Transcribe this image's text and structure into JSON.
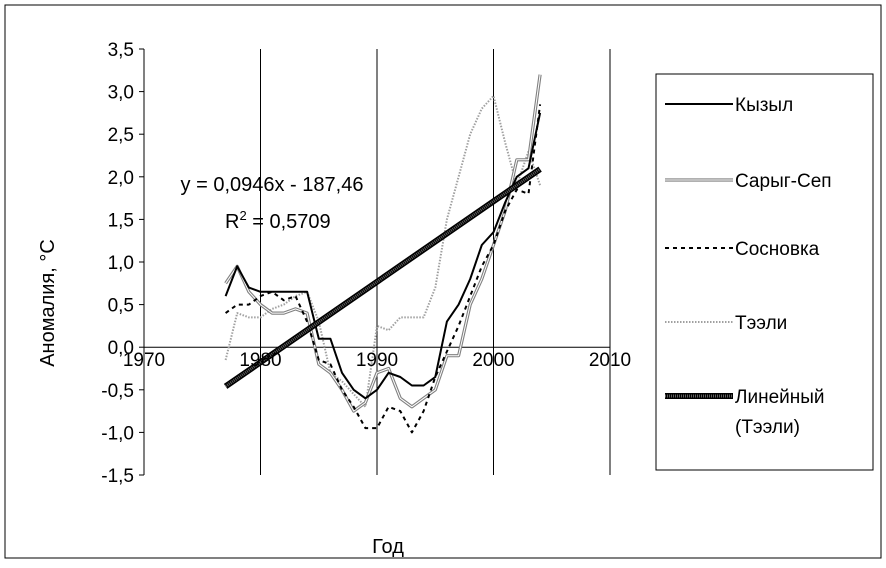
{
  "chart_data": {
    "type": "line",
    "title": "",
    "xlabel": "Год",
    "ylabel": "Аномалия, °C",
    "xlim": [
      1970,
      2010
    ],
    "ylim": [
      -1.5,
      3.5
    ],
    "x_ticks": [
      1970,
      1980,
      1990,
      2000,
      2010
    ],
    "x_tick_labels": [
      "1970",
      "1980",
      "1990",
      "2000",
      "2010"
    ],
    "y_ticks": [
      -1.5,
      -1.0,
      -0.5,
      0.0,
      0.5,
      1.0,
      1.5,
      2.0,
      2.5,
      3.0,
      3.5
    ],
    "y_tick_labels": [
      "-1,5",
      "-1,0",
      "-0,5",
      "0,0",
      "0,5",
      "1,0",
      "1,5",
      "2,0",
      "2,5",
      "3,0",
      "3,5"
    ],
    "grid": "vertical",
    "legend_position": "right",
    "equation": {
      "line1": "y = 0,0946x - 187,46",
      "r_prefix": "R",
      "r_sup": "2",
      "r_value": " = 0,5709"
    },
    "series": [
      {
        "name": "Кызыл",
        "style": "solid",
        "color": "#000000",
        "x": [
          1977,
          1978,
          1979,
          1980,
          1981,
          1982,
          1983,
          1984,
          1985,
          1986,
          1987,
          1988,
          1989,
          1990,
          1991,
          1992,
          1993,
          1994,
          1995,
          1996,
          1997,
          1998,
          1999,
          2000,
          2001,
          2002,
          2003,
          2004
        ],
        "y": [
          0.6,
          0.95,
          0.7,
          0.65,
          0.65,
          0.65,
          0.65,
          0.65,
          0.1,
          0.1,
          -0.3,
          -0.5,
          -0.6,
          -0.5,
          -0.3,
          -0.35,
          -0.45,
          -0.45,
          -0.35,
          0.3,
          0.5,
          0.8,
          1.2,
          1.35,
          1.7,
          2.0,
          2.1,
          2.75
        ]
      },
      {
        "name": "Сарыг-Сеп",
        "style": "double",
        "color": "#808080",
        "x": [
          1977,
          1978,
          1979,
          1980,
          1981,
          1982,
          1983,
          1984,
          1985,
          1986,
          1987,
          1988,
          1989,
          1990,
          1991,
          1992,
          1993,
          1994,
          1995,
          1996,
          1997,
          1998,
          1999,
          2000,
          2001,
          2002,
          2003,
          2004
        ],
        "y": [
          0.75,
          0.95,
          0.65,
          0.5,
          0.4,
          0.4,
          0.45,
          0.4,
          -0.2,
          -0.3,
          -0.5,
          -0.75,
          -0.65,
          -0.3,
          -0.25,
          -0.6,
          -0.7,
          -0.6,
          -0.5,
          -0.1,
          -0.1,
          0.5,
          0.8,
          1.2,
          1.6,
          2.2,
          2.2,
          3.2
        ]
      },
      {
        "name": "Сосновка",
        "style": "dashed",
        "color": "#000000",
        "x": [
          1977,
          1978,
          1979,
          1980,
          1981,
          1982,
          1983,
          1984,
          1985,
          1986,
          1987,
          1988,
          1989,
          1990,
          1991,
          1992,
          1993,
          1994,
          1995,
          1996,
          1997,
          1998,
          1999,
          2000,
          2001,
          2002,
          2003,
          2004
        ],
        "y": [
          0.4,
          0.5,
          0.5,
          0.6,
          0.65,
          0.55,
          0.6,
          0.3,
          -0.15,
          -0.2,
          -0.5,
          -0.7,
          -0.95,
          -0.95,
          -0.7,
          -0.75,
          -1.0,
          -0.75,
          -0.35,
          -0.05,
          0.25,
          0.6,
          0.95,
          1.2,
          1.6,
          1.85,
          1.8,
          2.85
        ]
      },
      {
        "name": "Тээли",
        "style": "dotted",
        "color": "#a0a0a0",
        "x": [
          1977,
          1978,
          1979,
          1980,
          1981,
          1982,
          1983,
          1984,
          1985,
          1986,
          1987,
          1988,
          1989,
          1990,
          1991,
          1992,
          1993,
          1994,
          1995,
          1996,
          1997,
          1998,
          1999,
          2000,
          2001,
          2002,
          2003,
          2004
        ],
        "y": [
          -0.15,
          0.4,
          0.35,
          0.35,
          0.45,
          0.5,
          0.6,
          0.65,
          0.3,
          -0.3,
          -0.4,
          -0.55,
          -0.7,
          0.25,
          0.2,
          0.35,
          0.35,
          0.35,
          0.7,
          1.5,
          2.0,
          2.5,
          2.8,
          2.95,
          2.4,
          1.9,
          2.3,
          1.9
        ]
      },
      {
        "name": "Линейный (Тээли)",
        "style": "trend",
        "color": "#606060",
        "x": [
          1977,
          2004
        ],
        "y": [
          -0.46,
          2.09
        ]
      }
    ]
  },
  "legend": {
    "items": [
      {
        "label_lines": [
          "Кызыл"
        ]
      },
      {
        "label_lines": [
          "Сарыг-Сеп"
        ]
      },
      {
        "label_lines": [
          "Сосновка"
        ]
      },
      {
        "label_lines": [
          "Тээли"
        ]
      },
      {
        "label_lines": [
          "Линейный",
          "(Тээли)"
        ]
      }
    ]
  }
}
